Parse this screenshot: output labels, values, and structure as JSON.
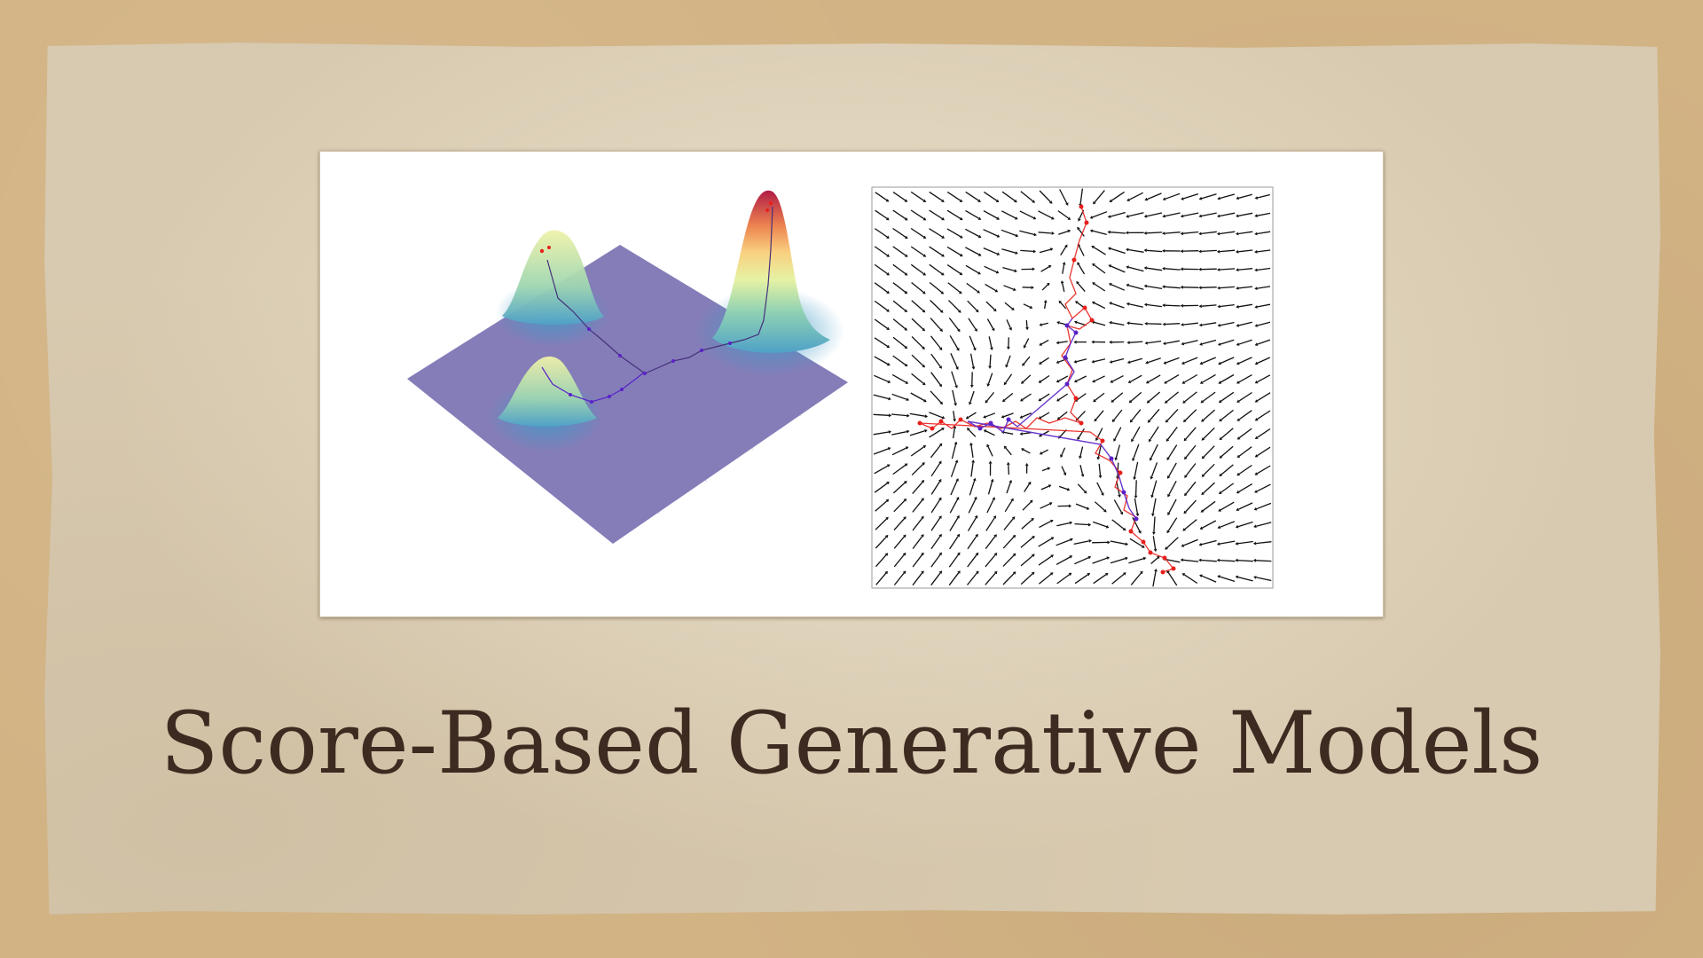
{
  "slide": {
    "title": "Score-Based Generative Models"
  },
  "colors": {
    "text": "#3d2a20",
    "background_board": "#d2b384",
    "paper": "#d8cab0",
    "surface_base": "#7a72b2",
    "path_red": "#e8201c",
    "path_purple": "#5a22c8",
    "arrows": "#111111"
  },
  "figure": {
    "left_panel": "3d-density-surface-with-sampling-path",
    "right_panel": "score-vector-field-with-langevin-paths"
  }
}
